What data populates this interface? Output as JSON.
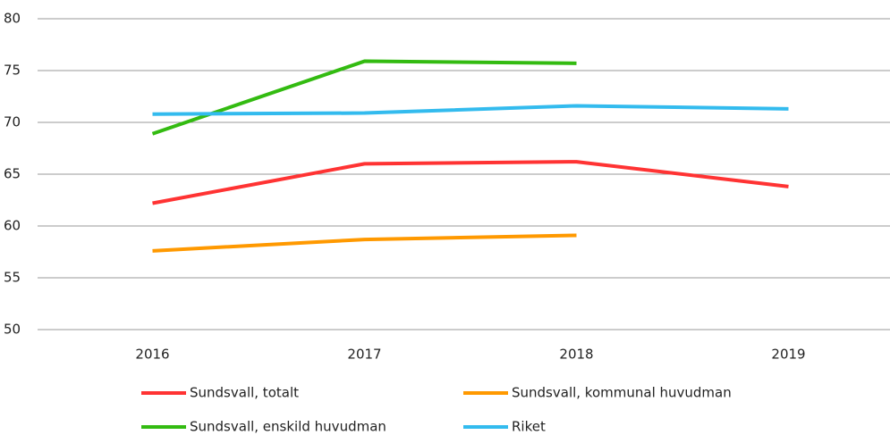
{
  "chart_data": {
    "type": "line",
    "categories": [
      "2016",
      "2017",
      "2018",
      "2019"
    ],
    "series": [
      {
        "name": "Sundsvall, totalt",
        "color": "#ff3333",
        "values": [
          62.2,
          66.0,
          66.2,
          63.8
        ]
      },
      {
        "name": "Sundsvall, kommunal huvudman",
        "color": "#ff9900",
        "values": [
          57.6,
          58.7,
          59.1,
          null
        ]
      },
      {
        "name": "Sundsvall, enskild huvudman",
        "color": "#33bb11",
        "values": [
          68.9,
          75.9,
          75.7,
          null
        ]
      },
      {
        "name": "Riket",
        "color": "#33bbee",
        "values": [
          70.8,
          70.9,
          71.6,
          71.3
        ]
      }
    ],
    "ylim": [
      50,
      80
    ],
    "yticks": [
      50,
      55,
      60,
      65,
      70,
      75,
      80
    ],
    "grid": true
  }
}
